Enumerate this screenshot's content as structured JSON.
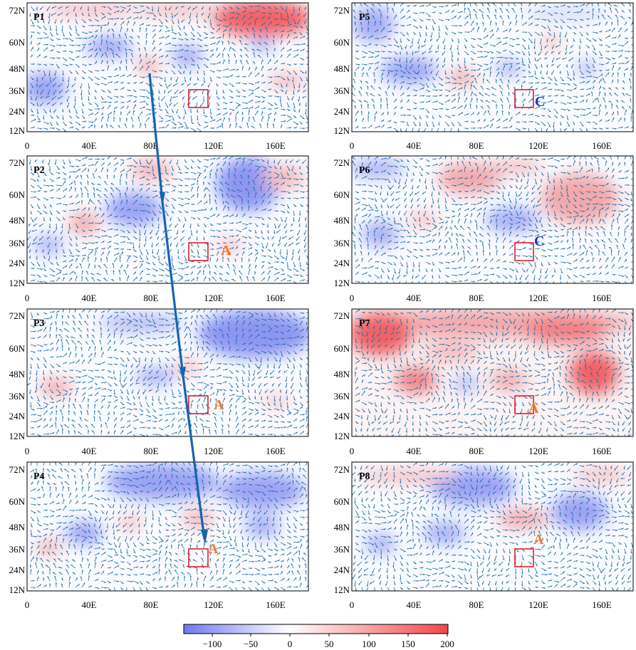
{
  "colors": {
    "positive": "#f0464b",
    "negative": "#7078f0",
    "vector": "#1f6fa8",
    "box": "#e0202a",
    "track": "#1565b0",
    "marker_A": "#f07a2a",
    "marker_C": "#1538c8"
  },
  "axes": {
    "x_ticks": [
      "0",
      "40E",
      "80E",
      "120E",
      "160E"
    ],
    "y_ticks": [
      "72N",
      "60N",
      "48N",
      "36N",
      "24N",
      "12N"
    ]
  },
  "panels": [
    {
      "label": "P1",
      "marker": "",
      "marker_type": ""
    },
    {
      "label": "P2",
      "marker": "A",
      "marker_type": "A"
    },
    {
      "label": "P3",
      "marker": "A",
      "marker_type": "A"
    },
    {
      "label": "P4",
      "marker": "A",
      "marker_type": "A"
    },
    {
      "label": "P5",
      "marker": "C",
      "marker_type": "C"
    },
    {
      "label": "P6",
      "marker": "C",
      "marker_type": "C"
    },
    {
      "label": "P7",
      "marker": "A",
      "marker_type": "A"
    },
    {
      "label": "P8",
      "marker": "A",
      "marker_type": "A"
    }
  ],
  "colorbar": {
    "ticks": [
      "−100",
      "−50",
      "0",
      "50",
      "100",
      "150",
      "200"
    ],
    "min": -135,
    "max": 200
  }
}
